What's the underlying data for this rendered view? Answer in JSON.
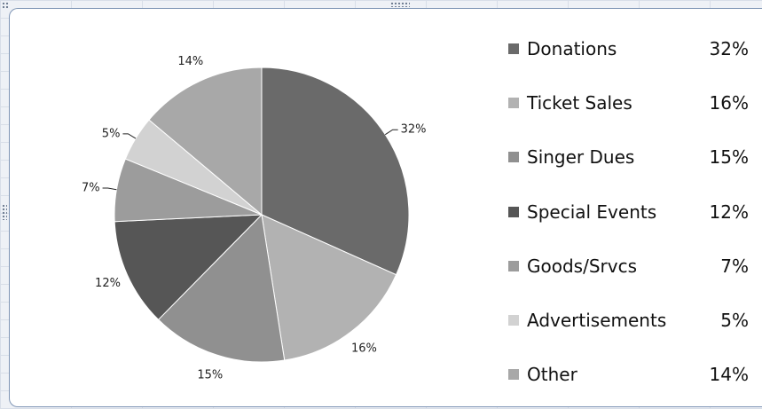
{
  "chart_data": {
    "type": "pie",
    "categories": [
      "Donations",
      "Ticket Sales",
      "Singer Dues",
      "Special Events",
      "Goods/Srvcs",
      "Advertisements",
      "Other"
    ],
    "values": [
      32,
      16,
      15,
      12,
      7,
      5,
      14
    ],
    "slice_labels": [
      "32%",
      "16%",
      "15%",
      "12%",
      "7%",
      "5%",
      "14%"
    ],
    "legend_values": [
      "32%",
      "16%",
      "15%",
      "12%",
      "7%",
      "5%",
      "14%"
    ],
    "colors": [
      "#6a6a6a",
      "#b2b2b2",
      "#909090",
      "#565656",
      "#9c9c9c",
      "#d2d2d2",
      "#a8a8a8"
    ],
    "legend_position": "right",
    "start_angle_deg": 0,
    "direction": "clockwise",
    "title": ""
  }
}
